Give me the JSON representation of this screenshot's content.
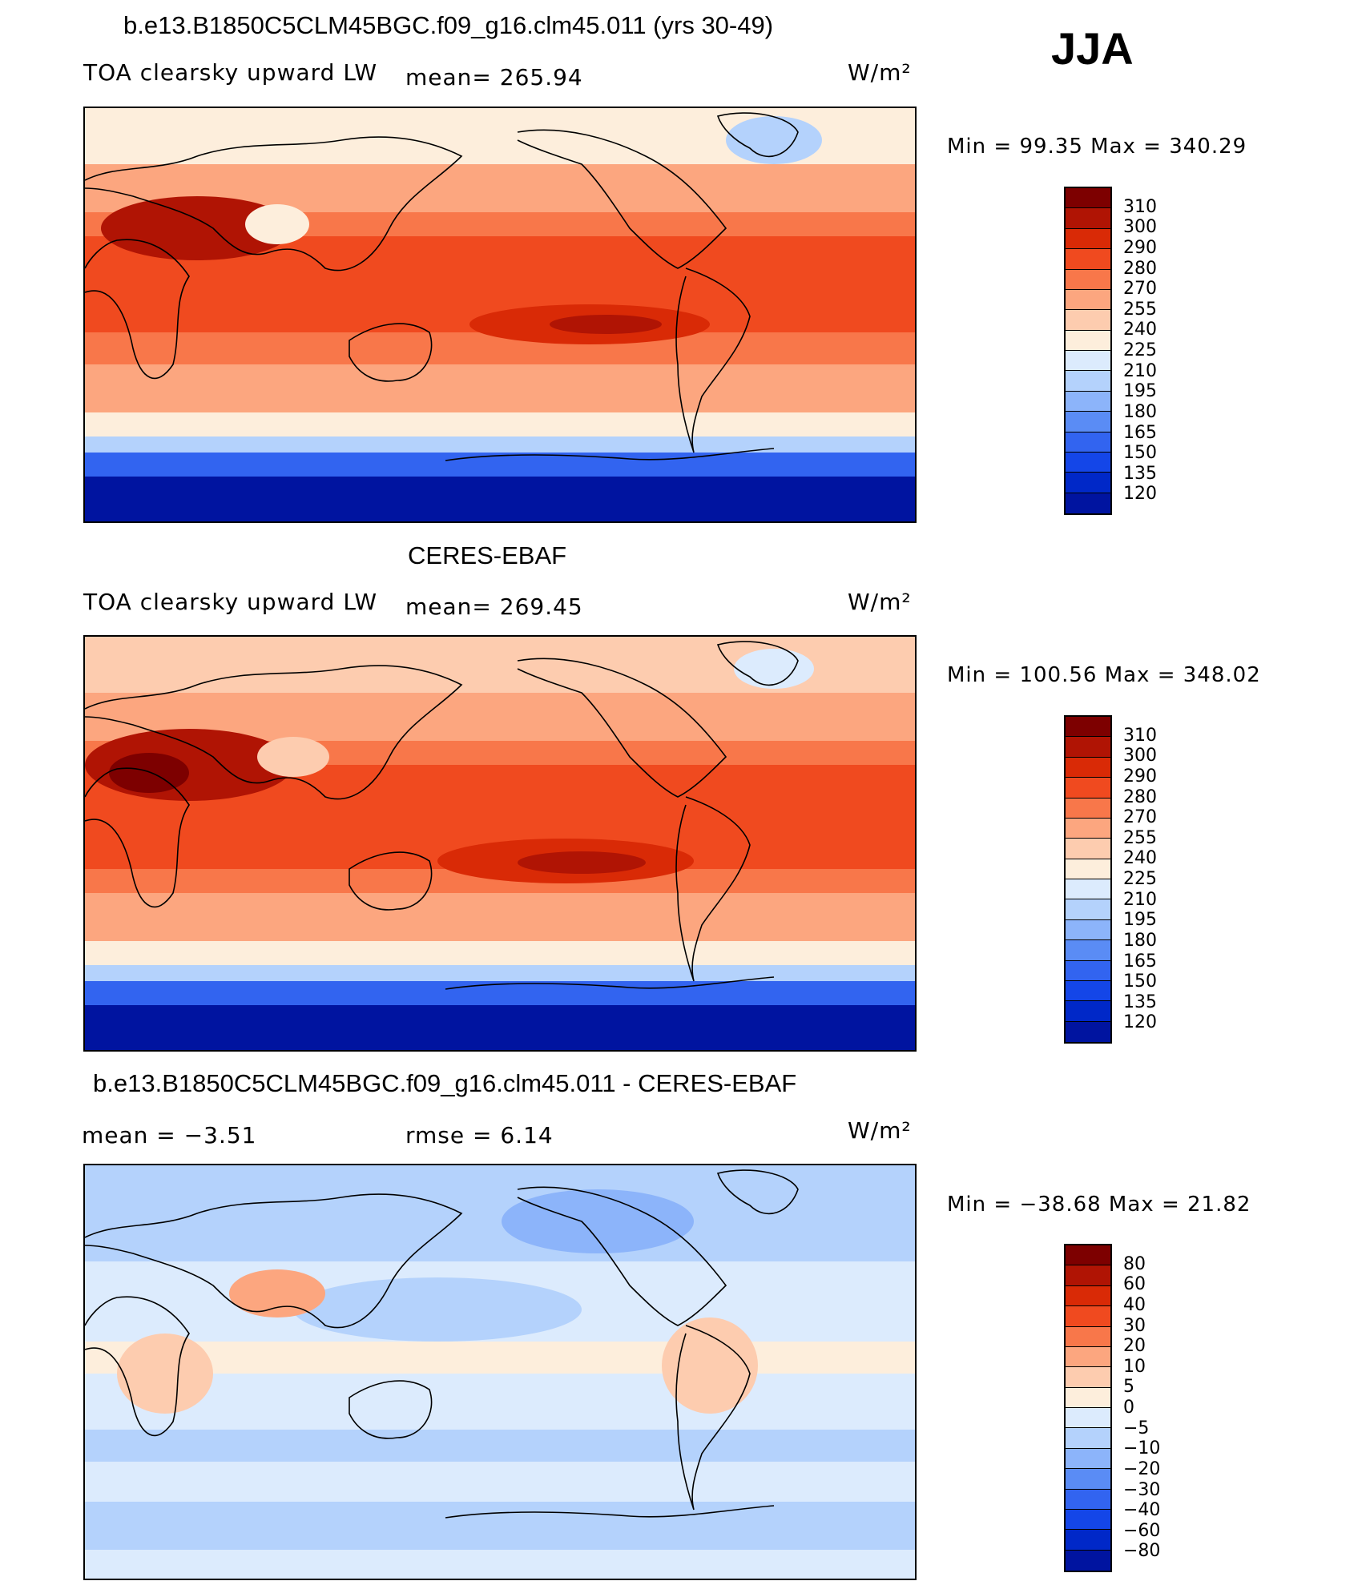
{
  "season": "JJA",
  "colors": {
    "abs": [
      "#00007d",
      "#0014a0",
      "#0028c8",
      "#1446e8",
      "#3264f0",
      "#5a8cf5",
      "#8cb4fa",
      "#b4d2fc",
      "#dcebfd",
      "#fdeedc",
      "#fdccaf",
      "#fca67f",
      "#f8774a",
      "#f04a1f",
      "#d92a06",
      "#b01404",
      "#7d0000"
    ],
    "diff": [
      "#00007d",
      "#0014a0",
      "#0028c8",
      "#1446e8",
      "#3264f0",
      "#5a8cf5",
      "#8cb4fa",
      "#b4d2fc",
      "#dcebfd",
      "#fdeedc",
      "#fdccaf",
      "#fca67f",
      "#f8774a",
      "#f04a1f",
      "#d92a06",
      "#b01404",
      "#7d0000"
    ]
  },
  "panels": [
    {
      "title": "b.e13.B1850C5CLM45BGC.f09_g16.clm45.011 (yrs 30-49)",
      "left_label": "TOA clearsky upward LW",
      "center_label": "mean=  265.94",
      "units": "W/m²",
      "minmax": "Min  =   99.35  Max  =  340.29",
      "colorbar_labels": [
        "310",
        "300",
        "290",
        "280",
        "270",
        "255",
        "240",
        "225",
        "210",
        "195",
        "180",
        "165",
        "150",
        "135",
        "120"
      ],
      "field": "model"
    },
    {
      "title": "CERES-EBAF",
      "left_label": "TOA clearsky upward LW",
      "center_label": "mean=  269.45",
      "units": "W/m²",
      "minmax": "Min  =  100.56  Max  =  348.02",
      "colorbar_labels": [
        "310",
        "300",
        "290",
        "280",
        "270",
        "255",
        "240",
        "225",
        "210",
        "195",
        "180",
        "165",
        "150",
        "135",
        "120"
      ],
      "field": "obs"
    },
    {
      "title": "b.e13.B1850C5CLM45BGC.f09_g16.clm45.011 - CERES-EBAF",
      "left_label": "mean  =    −3.51",
      "center_label": "rmse  =     6.14",
      "units": "W/m²",
      "minmax": "Min  = −38.68  Max  =   21.82",
      "colorbar_labels": [
        "80",
        "60",
        "40",
        "30",
        "20",
        "10",
        "5",
        "0",
        "−5",
        "−10",
        "−20",
        "−30",
        "−40",
        "−60",
        "−80"
      ],
      "field": "diff"
    }
  ]
}
